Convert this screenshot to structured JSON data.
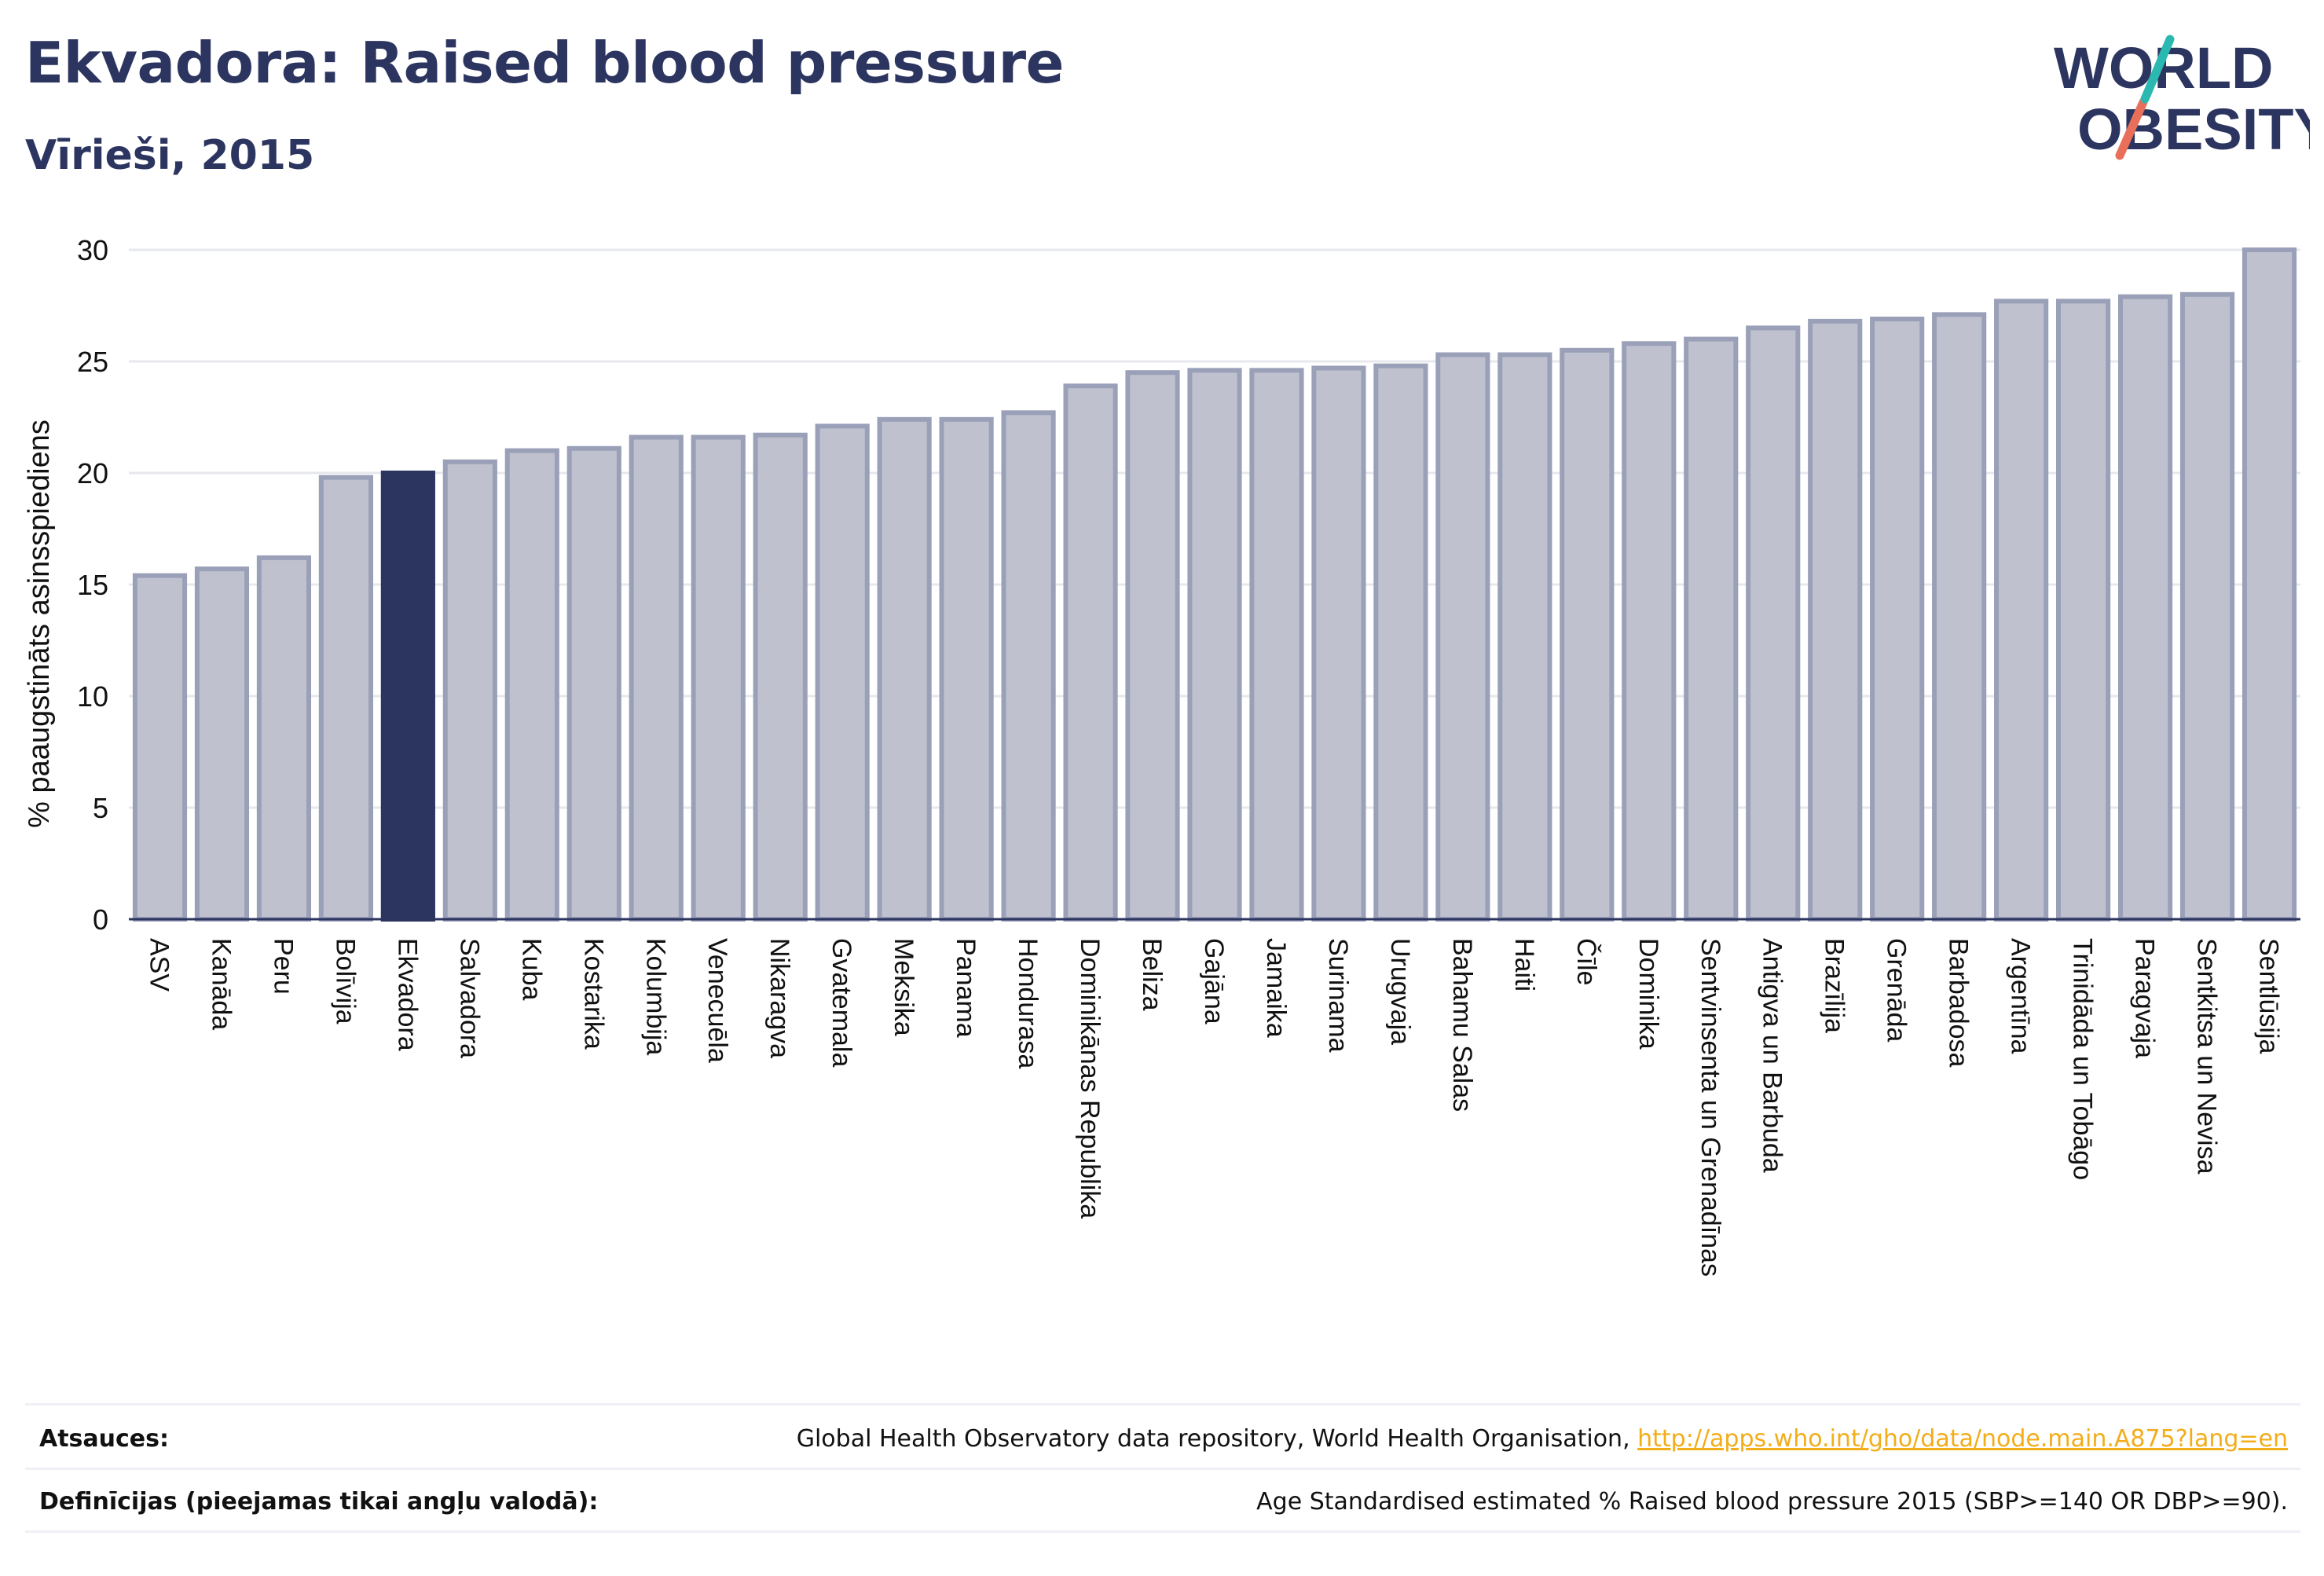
{
  "header": {
    "title": "Ekvadora: Raised blood pressure",
    "subtitle": "Vīrieši, 2015"
  },
  "logo": {
    "line1": "WORLD",
    "line2": "OBESITY",
    "slash_top_color": "#2bb8b0",
    "slash_bottom_color": "#e8705a",
    "text_color": "#2c3560"
  },
  "chart_data": {
    "type": "bar",
    "title": "Ekvadora: Raised blood pressure",
    "subtitle": "Vīrieši, 2015",
    "xlabel": "",
    "ylabel": "% paaugstināts asinsspiediens",
    "ylim": [
      0,
      30
    ],
    "yticks": [
      0,
      5,
      10,
      15,
      20,
      25,
      30
    ],
    "grid": true,
    "highlight_category": "Ekvadora",
    "colors": {
      "bar_fill": "#bfc2ce",
      "bar_stroke": "#9aa0b8",
      "highlight": "#2c3560",
      "gridline": "#e6e8ee",
      "axis": "#2c3560"
    },
    "categories": [
      "ASV",
      "Kanāda",
      "Peru",
      "Bolīvija",
      "Ekvadora",
      "Salvadora",
      "Kuba",
      "Kostarika",
      "Kolumbija",
      "Venecuēla",
      "Nikaragva",
      "Gvatemala",
      "Meksika",
      "Panama",
      "Hondurasa",
      "Dominikānas Republika",
      "Beliza",
      "Gajāna",
      "Jamaika",
      "Surinama",
      "Urugvaja",
      "Bahamu Salas",
      "Haiti",
      "Čīle",
      "Dominika",
      "Sentvinsenta un Grenadīnas",
      "Antigva un Barbuda",
      "Brazīlija",
      "Grenāda",
      "Barbadosa",
      "Argentīna",
      "Trinidāda un Tobāgo",
      "Paragvaja",
      "Sentkitsa un Nevisa",
      "Sentlūsija"
    ],
    "values": [
      15.4,
      15.7,
      16.2,
      19.8,
      20.0,
      20.5,
      21.0,
      21.1,
      21.6,
      21.6,
      21.7,
      22.1,
      22.4,
      22.4,
      22.7,
      23.9,
      24.5,
      24.6,
      24.6,
      24.7,
      24.8,
      25.3,
      25.3,
      25.5,
      25.8,
      26.0,
      26.5,
      26.8,
      26.9,
      27.1,
      27.7,
      27.7,
      27.9,
      28.0,
      30.0
    ]
  },
  "footer": {
    "sources_label": "Atsauces:",
    "sources_text": "Global Health Observatory data repository, World Health Organisation, ",
    "sources_link": "http://apps.who.int/gho/data/node.main.A875?lang=en",
    "definitions_label": "Definīcijas (pieejamas tikai angļu valodā):",
    "definitions_text": "Age Standardised estimated % Raised blood pressure 2015 (SBP>=140 OR DBP>=90)."
  }
}
